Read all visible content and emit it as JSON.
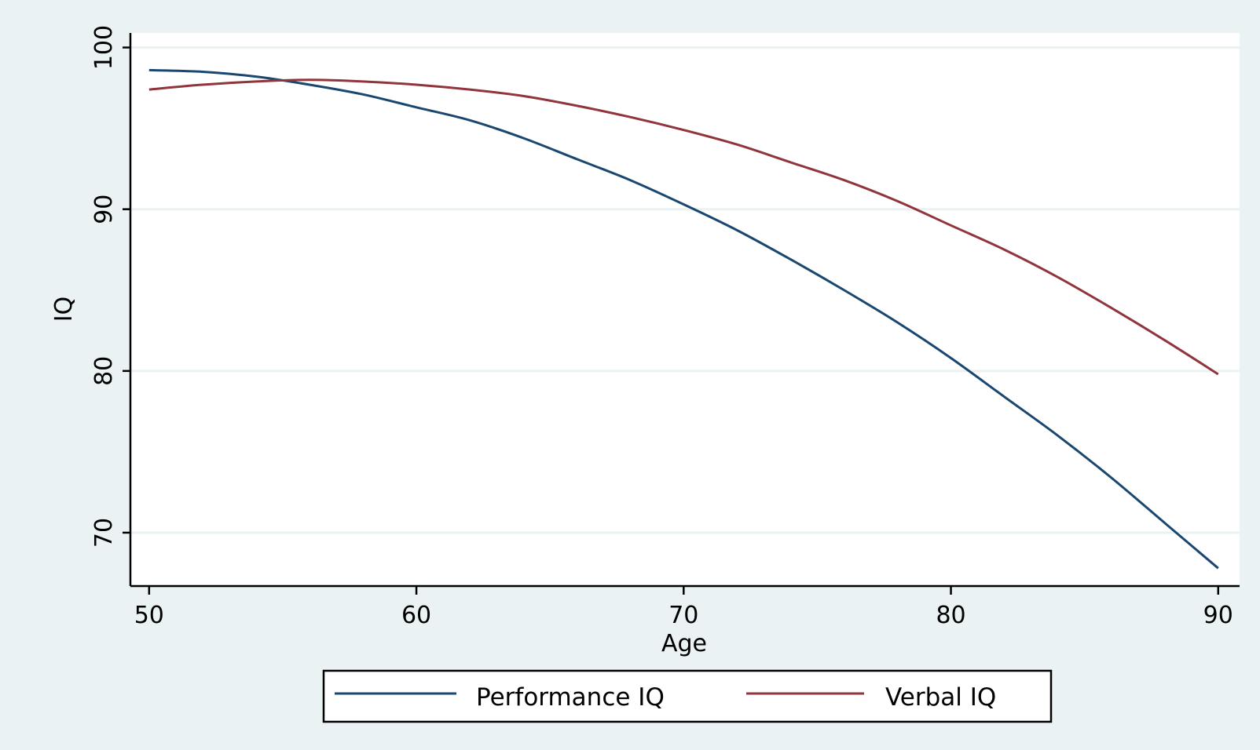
{
  "chart_data": {
    "type": "line",
    "xlabel": "Age",
    "ylabel": "IQ",
    "xlim": [
      49.3,
      90.8
    ],
    "ylim": [
      66.7,
      100.9
    ],
    "x_ticks": [
      50,
      60,
      70,
      80,
      90
    ],
    "y_ticks": [
      70,
      80,
      90,
      100
    ],
    "grid": true,
    "legend_position": "bottom-center",
    "colors": {
      "outer_background": "#eaf2f3",
      "plot_background": "#ffffff",
      "grid": "#eaf2f3",
      "axis": "#000000",
      "performance": "#1a476f",
      "verbal": "#90353b"
    },
    "series": [
      {
        "name": "Performance IQ",
        "color": "#1a476f",
        "x": [
          50,
          52,
          54,
          56,
          58,
          60,
          62,
          64,
          66,
          68,
          70,
          72,
          74,
          76,
          78,
          80,
          82,
          84,
          86,
          88,
          90
        ],
        "y": [
          98.6,
          98.5,
          98.2,
          97.7,
          97.1,
          96.3,
          95.5,
          94.4,
          93.1,
          91.8,
          90.3,
          88.7,
          86.9,
          85.0,
          83.0,
          80.8,
          78.4,
          76.0,
          73.4,
          70.6,
          67.8
        ]
      },
      {
        "name": "Verbal IQ",
        "color": "#90353b",
        "x": [
          50,
          52,
          54,
          56,
          58,
          60,
          62,
          64,
          66,
          68,
          70,
          72,
          74,
          76,
          78,
          80,
          82,
          84,
          86,
          88,
          90
        ],
        "y": [
          97.4,
          97.7,
          97.9,
          98.0,
          97.9,
          97.7,
          97.4,
          97.0,
          96.4,
          95.7,
          94.9,
          94.0,
          92.9,
          91.8,
          90.5,
          89.0,
          87.5,
          85.8,
          83.9,
          81.9,
          79.8
        ]
      }
    ]
  }
}
